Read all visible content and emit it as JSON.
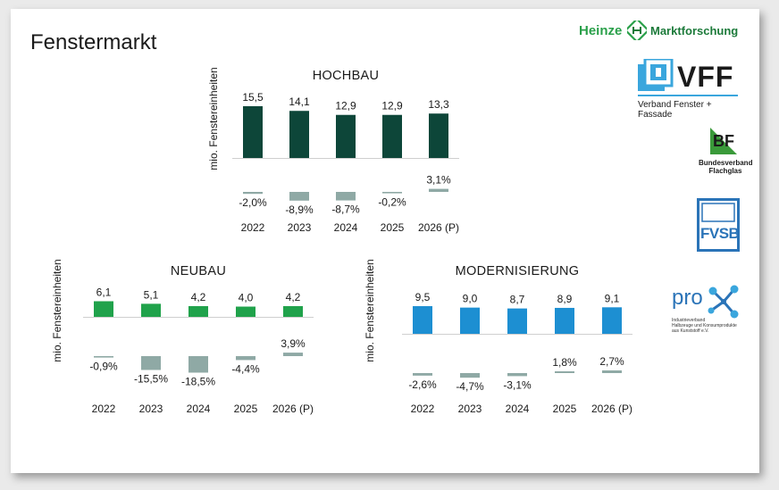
{
  "page": {
    "title": "Fenstermarkt"
  },
  "logos": {
    "heinze": {
      "brand": "Heinze",
      "tail": "Marktforschung"
    },
    "vff": {
      "name": "VFF",
      "subtitle": "Verband Fenster + Fassade"
    },
    "bf": {
      "name": "BF",
      "line1": "Bundesverband",
      "line2": "Flachglas"
    },
    "fvsb": {
      "name": "FVSB"
    },
    "prok": {
      "name": "pro",
      "line1": "Industrieverband",
      "line2": "Halbzeuge und Konsumprodukte",
      "line3": "aus Kunststoff e.V."
    }
  },
  "colors": {
    "hochbau": "#0d4639",
    "neubau": "#20a24b",
    "modernisierung": "#1d8fd2",
    "change": "#8fa9a5"
  },
  "chart_data": [
    {
      "id": "hochbau",
      "type": "bar",
      "title": "HOCHBAU",
      "ylabel": "mio. Fenstereinheiten",
      "categories": [
        "2022",
        "2023",
        "2024",
        "2025",
        "2026 (P)"
      ],
      "values": [
        15.5,
        14.1,
        12.9,
        12.9,
        13.3
      ],
      "value_labels": [
        "15,5",
        "14,1",
        "12,9",
        "12,9",
        "13,3"
      ],
      "changes": [
        -2.0,
        -8.9,
        -8.7,
        -0.2,
        3.1
      ],
      "change_labels": [
        "-2,0%",
        "-8,9%",
        "-8,7%",
        "-0,2%",
        "3,1%"
      ]
    },
    {
      "id": "neubau",
      "type": "bar",
      "title": "NEUBAU",
      "ylabel": "mio. Fenstereinheiten",
      "categories": [
        "2022",
        "2023",
        "2024",
        "2025",
        "2026 (P)"
      ],
      "values": [
        6.1,
        5.1,
        4.2,
        4.0,
        4.2
      ],
      "value_labels": [
        "6,1",
        "5,1",
        "4,2",
        "4,0",
        "4,2"
      ],
      "changes": [
        -0.9,
        -15.5,
        -18.5,
        -4.4,
        3.9
      ],
      "change_labels": [
        "-0,9%",
        "-15,5%",
        "-18,5%",
        "-4,4%",
        "3,9%"
      ]
    },
    {
      "id": "modernisierung",
      "type": "bar",
      "title": "MODERNISIERUNG",
      "ylabel": "mio. Fenstereinheiten",
      "categories": [
        "2022",
        "2023",
        "2024",
        "2025",
        "2026 (P)"
      ],
      "values": [
        9.5,
        9.0,
        8.7,
        8.9,
        9.1
      ],
      "value_labels": [
        "9,5",
        "9,0",
        "8,7",
        "8,9",
        "9,1"
      ],
      "changes": [
        -2.6,
        -4.7,
        -3.1,
        1.8,
        2.7
      ],
      "change_labels": [
        "-2,6%",
        "-4,7%",
        "-3,1%",
        "1,8%",
        "2,7%"
      ]
    }
  ]
}
